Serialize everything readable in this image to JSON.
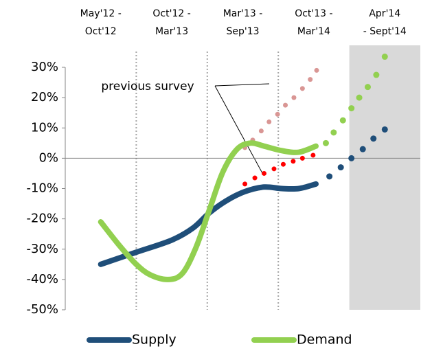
{
  "chart_data": {
    "type": "line",
    "columns": [
      [
        "May'12 -",
        "Oct'12"
      ],
      [
        "Oct'12 -",
        "Mar'13"
      ],
      [
        "Mar'13  -",
        "Sep'13"
      ],
      [
        "Oct'13 -",
        "Mar'14"
      ],
      [
        "Apr'14",
        "- Sept'14"
      ]
    ],
    "xlim": [
      0,
      5
    ],
    "forecast_shade": [
      4,
      5
    ],
    "column_dividers": [
      1,
      2,
      3
    ],
    "ylim": [
      -50,
      30
    ],
    "yticks": [
      {
        "value": -50,
        "label": "-50%"
      },
      {
        "value": -40,
        "label": "-40%"
      },
      {
        "value": -30,
        "label": "-30%"
      },
      {
        "value": -20,
        "label": "-20%"
      },
      {
        "value": -10,
        "label": "-10%"
      },
      {
        "value": 0,
        "label": "0%"
      },
      {
        "value": 10,
        "label": "10%"
      },
      {
        "value": 20,
        "label": "20%"
      },
      {
        "value": 30,
        "label": "30%"
      }
    ],
    "annotation": "previous survey",
    "series": [
      {
        "name": "Supply",
        "color": "#1f4e79",
        "x": [
          0.5,
          1.0,
          1.5,
          1.8,
          2.03,
          2.27,
          2.53,
          2.8,
          3.05,
          3.29,
          3.53
        ],
        "values": [
          -35,
          -31,
          -27,
          -23,
          -18,
          -14,
          -11,
          -9.5,
          -10,
          -10,
          -8.5
        ],
        "forecast_x": [
          3.72,
          3.88,
          4.03,
          4.19,
          4.34,
          4.5
        ],
        "forecast_values": [
          -6,
          -3,
          0,
          3,
          6.5,
          9.5
        ],
        "previous_color": "#ff0000",
        "previous_x": [
          2.53,
          2.67,
          2.8,
          2.94,
          3.07,
          3.21,
          3.34,
          3.49
        ],
        "previous_values": [
          -8.5,
          -6.5,
          -5,
          -3.5,
          -2,
          -1,
          0,
          1
        ]
      },
      {
        "name": "Demand",
        "color": "#92d050",
        "x": [
          0.5,
          0.77,
          1.0,
          1.2,
          1.45,
          1.65,
          1.84,
          2.03,
          2.22,
          2.42,
          2.61,
          2.8,
          3.05,
          3.29,
          3.53
        ],
        "values": [
          -21,
          -29,
          -35,
          -38.5,
          -40,
          -38,
          -29.5,
          -17,
          -4.5,
          3,
          5,
          4,
          2.5,
          2,
          4
        ],
        "forecast_x": [
          3.67,
          3.78,
          3.91,
          4.03,
          4.14,
          4.26,
          4.38,
          4.5
        ],
        "forecast_values": [
          5,
          8.5,
          12.5,
          16.5,
          20,
          23.5,
          27.5,
          33.5
        ],
        "previous_color": "#d99694",
        "previous_x": [
          2.53,
          2.64,
          2.76,
          2.87,
          2.99,
          3.1,
          3.22,
          3.34,
          3.45,
          3.54
        ],
        "previous_values": [
          3.5,
          6,
          9,
          12,
          14.5,
          17.5,
          20,
          23,
          26,
          29
        ]
      }
    ]
  }
}
